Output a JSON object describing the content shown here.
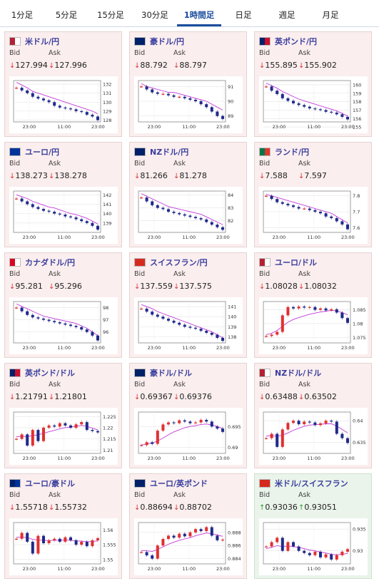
{
  "tabs": [
    "1分足",
    "5分足",
    "15分足",
    "30分足",
    "1時間足",
    "日足",
    "週足",
    "月足"
  ],
  "active_tab": 4,
  "labels": {
    "bid": "Bid",
    "ask": "Ask"
  },
  "cards": [
    {
      "pair": "米ドル/円",
      "bid": "127.994",
      "ask": "127.996",
      "dir": "down",
      "flag": [
        "#b22234",
        "#ffffff"
      ],
      "yticks": [
        "132",
        "131",
        "130",
        "129",
        "128"
      ],
      "xticks": [
        "23:00",
        "11:00",
        "23:00"
      ],
      "chart_data": {
        "type": "line",
        "y_range": [
          127.8,
          132.4
        ],
        "close": [
          131.6,
          131.3,
          131.0,
          130.6,
          130.4,
          130.2,
          130.0,
          129.6,
          129.4,
          129.3,
          129.2,
          129.0,
          128.9,
          128.6,
          128.4,
          128.0
        ],
        "ma": [
          132.2,
          131.9,
          131.6,
          131.2,
          131.0,
          130.8,
          130.6,
          130.4,
          130.2,
          130.0,
          129.8,
          129.6,
          129.4,
          129.2,
          129.0,
          128.7
        ]
      }
    },
    {
      "pair": "豪ドル/円",
      "bid": "88.792",
      "ask": "88.797",
      "dir": "down",
      "flag": [
        "#012169",
        "#012169"
      ],
      "yticks": [
        "91",
        "90",
        "89"
      ],
      "xticks": [
        "23:00",
        "11:00",
        "23:00"
      ],
      "chart_data": {
        "type": "line",
        "y_range": [
          88.6,
          91.4
        ],
        "close": [
          91.0,
          90.8,
          90.6,
          90.5,
          90.5,
          90.4,
          90.3,
          90.3,
          90.2,
          90.1,
          90.0,
          89.8,
          89.6,
          89.3,
          89.0,
          88.8
        ],
        "ma": [
          91.2,
          91.0,
          90.9,
          90.8,
          90.7,
          90.6,
          90.6,
          90.5,
          90.4,
          90.3,
          90.2,
          90.1,
          90.0,
          89.8,
          89.6,
          89.4
        ]
      }
    },
    {
      "pair": "英ポンド/円",
      "bid": "155.895",
      "ask": "155.902",
      "dir": "down",
      "flag": [
        "#012169",
        "#c8102e"
      ],
      "yticks": [
        "160",
        "159",
        "158",
        "157",
        "156",
        "155"
      ],
      "xticks": [
        "23:00",
        "11:00",
        "23:00"
      ],
      "chart_data": {
        "type": "line",
        "y_range": [
          155.6,
          160.5
        ],
        "close": [
          159.8,
          159.3,
          158.9,
          158.4,
          158.1,
          157.8,
          157.6,
          157.4,
          157.2,
          157.1,
          157.0,
          156.8,
          156.7,
          156.5,
          156.2,
          155.9
        ],
        "ma": [
          160.2,
          159.9,
          159.6,
          159.2,
          158.9,
          158.6,
          158.3,
          158.1,
          157.9,
          157.7,
          157.5,
          157.3,
          157.1,
          156.9,
          156.6,
          156.3
        ]
      }
    },
    {
      "pair": "ユーロ/円",
      "bid": "138.273",
      "ask": "138.278",
      "dir": "down",
      "flag": [
        "#003399",
        "#003399"
      ],
      "yticks": [
        "142",
        "141",
        "140",
        "139"
      ],
      "xticks": [
        "23:00",
        "11:00",
        "23:00"
      ],
      "chart_data": {
        "type": "line",
        "y_range": [
          138.0,
          142.4
        ],
        "close": [
          141.6,
          141.3,
          141.0,
          140.7,
          140.5,
          140.3,
          140.2,
          140.0,
          139.9,
          139.7,
          139.6,
          139.4,
          139.2,
          139.0,
          138.7,
          138.3
        ],
        "ma": [
          142.0,
          141.8,
          141.6,
          141.3,
          141.1,
          140.9,
          140.7,
          140.6,
          140.4,
          140.2,
          140.0,
          139.9,
          139.7,
          139.5,
          139.2,
          138.9
        ]
      }
    },
    {
      "pair": "NZドル/円",
      "bid": "81.266",
      "ask": "81.278",
      "dir": "down",
      "flag": [
        "#012169",
        "#012169"
      ],
      "yticks": [
        "84",
        "83",
        "82"
      ],
      "xticks": [
        "23:00",
        "11:00",
        "23:00"
      ],
      "chart_data": {
        "type": "line",
        "y_range": [
          81.1,
          84.3
        ],
        "close": [
          83.8,
          83.5,
          83.2,
          83.0,
          82.9,
          82.7,
          82.6,
          82.5,
          82.4,
          82.3,
          82.2,
          82.1,
          81.9,
          81.7,
          81.5,
          81.3
        ],
        "ma": [
          84.1,
          83.9,
          83.7,
          83.5,
          83.3,
          83.1,
          83.0,
          82.9,
          82.8,
          82.7,
          82.6,
          82.5,
          82.3,
          82.1,
          81.9,
          81.7
        ]
      }
    },
    {
      "pair": "ランド/円",
      "bid": "7.588",
      "ask": "7.597",
      "dir": "down",
      "flag": [
        "#007749",
        "#de3831"
      ],
      "yticks": [
        "7.8",
        "7.7",
        "7.6"
      ],
      "xticks": [
        "23:00",
        "11:00",
        "23:00"
      ],
      "chart_data": {
        "type": "line",
        "y_range": [
          7.57,
          7.83
        ],
        "close": [
          7.8,
          7.78,
          7.76,
          7.75,
          7.74,
          7.73,
          7.72,
          7.72,
          7.71,
          7.7,
          7.69,
          7.67,
          7.66,
          7.64,
          7.62,
          7.59
        ],
        "ma": [
          7.81,
          7.8,
          7.79,
          7.78,
          7.77,
          7.76,
          7.75,
          7.74,
          7.73,
          7.72,
          7.71,
          7.7,
          7.69,
          7.67,
          7.65,
          7.63
        ]
      }
    },
    {
      "pair": "カナダドル/円",
      "bid": "95.281",
      "ask": "95.296",
      "dir": "down",
      "flag": [
        "#d80621",
        "#ffffff"
      ],
      "yticks": [
        "98",
        "97",
        "96"
      ],
      "xticks": [
        "23:00",
        "11:00",
        "23:00"
      ],
      "chart_data": {
        "type": "line",
        "y_range": [
          95.1,
          98.5
        ],
        "close": [
          98.0,
          97.7,
          97.4,
          97.2,
          97.1,
          97.0,
          96.9,
          96.8,
          96.7,
          96.6,
          96.5,
          96.4,
          96.2,
          96.0,
          95.7,
          95.3
        ],
        "ma": [
          98.3,
          98.1,
          97.9,
          97.7,
          97.5,
          97.3,
          97.2,
          97.1,
          97.0,
          96.9,
          96.8,
          96.7,
          96.5,
          96.3,
          96.0,
          95.7
        ]
      }
    },
    {
      "pair": "スイスフラン/円",
      "bid": "137.559",
      "ask": "137.575",
      "dir": "down",
      "flag": [
        "#d52b1e",
        "#d52b1e"
      ],
      "yticks": [
        "141",
        "140",
        "139",
        "138"
      ],
      "xticks": [
        "23:00",
        "11:00",
        "23:00"
      ],
      "chart_data": {
        "type": "line",
        "y_range": [
          137.4,
          141.5
        ],
        "close": [
          140.8,
          140.5,
          140.2,
          140.0,
          139.8,
          139.6,
          139.4,
          139.2,
          139.0,
          138.9,
          138.8,
          138.6,
          138.4,
          138.2,
          137.9,
          137.6
        ],
        "ma": [
          141.2,
          141.0,
          140.8,
          140.5,
          140.3,
          140.1,
          139.9,
          139.7,
          139.5,
          139.3,
          139.1,
          138.9,
          138.7,
          138.5,
          138.2,
          137.9
        ]
      }
    },
    {
      "pair": "ユーロ/ドル",
      "bid": "1.08028",
      "ask": "1.08032",
      "dir": "down",
      "flag": [
        "#b22234",
        "#ffffff"
      ],
      "yticks": [
        "1.085",
        "1.08",
        "1.075"
      ],
      "xticks": [
        "23:00",
        "11:00",
        "23:00"
      ],
      "chart_data": {
        "type": "line",
        "y_range": [
          1.073,
          1.088
        ],
        "close": [
          1.0755,
          1.076,
          1.077,
          1.083,
          1.086,
          1.0855,
          1.0862,
          1.0858,
          1.086,
          1.085,
          1.0855,
          1.0848,
          1.0852,
          1.084,
          1.082,
          1.0803
        ],
        "ma": [
          1.076,
          1.0765,
          1.0775,
          1.079,
          1.0805,
          1.0815,
          1.0822,
          1.0828,
          1.0834,
          1.0838,
          1.0842,
          1.0845,
          1.0848,
          1.0846,
          1.084,
          1.0832
        ]
      }
    },
    {
      "pair": "英ポンド/ドル",
      "bid": "1.21791",
      "ask": "1.21801",
      "dir": "down",
      "flag": [
        "#012169",
        "#c8102e"
      ],
      "yticks": [
        "1.225",
        "1.22",
        "1.215",
        "1.21"
      ],
      "xticks": [
        "23:00",
        "11:00",
        "23:00"
      ],
      "chart_data": {
        "type": "line",
        "y_range": [
          1.2085,
          1.227
        ],
        "close": [
          1.215,
          1.217,
          1.212,
          1.219,
          1.214,
          1.22,
          1.221,
          1.2205,
          1.222,
          1.221,
          1.22,
          1.2215,
          1.2225,
          1.219,
          1.2185,
          1.2179
        ],
        "ma": [
          1.216,
          1.2162,
          1.216,
          1.2165,
          1.2168,
          1.2175,
          1.2182,
          1.2188,
          1.2195,
          1.22,
          1.2203,
          1.2206,
          1.221,
          1.2206,
          1.2198,
          1.219
        ]
      }
    },
    {
      "pair": "豪ドル/ドル",
      "bid": "0.69367",
      "ask": "0.69376",
      "dir": "down",
      "flag": [
        "#012169",
        "#012169"
      ],
      "yticks": [
        "0.695",
        "0.69"
      ],
      "xticks": [
        "23:00",
        "11:00",
        "23:00"
      ],
      "chart_data": {
        "type": "line",
        "y_range": [
          0.6885,
          0.6985
        ],
        "close": [
          0.6905,
          0.6912,
          0.6908,
          0.694,
          0.6955,
          0.696,
          0.6958,
          0.6965,
          0.6962,
          0.6958,
          0.696,
          0.6966,
          0.6962,
          0.695,
          0.6945,
          0.6937
        ],
        "ma": [
          0.6905,
          0.6908,
          0.691,
          0.6915,
          0.6922,
          0.693,
          0.6937,
          0.6942,
          0.6947,
          0.695,
          0.6952,
          0.6955,
          0.6956,
          0.6954,
          0.695,
          0.6945
        ]
      }
    },
    {
      "pair": "NZドル/ドル",
      "bid": "0.63488",
      "ask": "0.63502",
      "dir": "down",
      "flag": [
        "#b22234",
        "#ffffff"
      ],
      "yticks": [
        "0.64",
        "0.635"
      ],
      "xticks": [
        "23:00",
        "11:00",
        "23:00"
      ],
      "chart_data": {
        "type": "line",
        "y_range": [
          0.6325,
          0.642
        ],
        "close": [
          0.636,
          0.637,
          0.634,
          0.638,
          0.6395,
          0.64,
          0.6392,
          0.6398,
          0.6396,
          0.639,
          0.6394,
          0.64,
          0.6398,
          0.637,
          0.636,
          0.6349
        ],
        "ma": [
          0.6365,
          0.6366,
          0.6364,
          0.6367,
          0.6372,
          0.6378,
          0.6383,
          0.6387,
          0.639,
          0.6391,
          0.6392,
          0.6393,
          0.6393,
          0.6388,
          0.638,
          0.6372
        ]
      }
    },
    {
      "pair": "ユーロ/豪ドル",
      "bid": "1.55718",
      "ask": "1.55732",
      "dir": "down",
      "flag": [
        "#012169",
        "#003399"
      ],
      "yticks": [
        "1.56",
        "1.555",
        "1.55"
      ],
      "xticks": [
        "23:00",
        "11:00",
        "23:00"
      ],
      "chart_data": {
        "type": "line",
        "y_range": [
          1.5485,
          1.5625
        ],
        "close": [
          1.557,
          1.559,
          1.556,
          1.552,
          1.558,
          1.5555,
          1.5565,
          1.557,
          1.556,
          1.5575,
          1.5565,
          1.555,
          1.556,
          1.5545,
          1.5565,
          1.5572
        ],
        "ma": [
          1.5575,
          1.5576,
          1.5574,
          1.5568,
          1.5566,
          1.5565,
          1.5564,
          1.5565,
          1.5565,
          1.5566,
          1.5565,
          1.5563,
          1.5562,
          1.556,
          1.5561,
          1.5563
        ]
      }
    },
    {
      "pair": "ユーロ/英ポンド",
      "bid": "0.88694",
      "ask": "0.88702",
      "dir": "down",
      "flag": [
        "#012169",
        "#012169"
      ],
      "yticks": [
        "0.888",
        "0.886",
        "0.884"
      ],
      "xticks": [
        "23:00",
        "11:00",
        "23:00"
      ],
      "chart_data": {
        "type": "line",
        "y_range": [
          0.8832,
          0.8895
        ],
        "close": [
          0.885,
          0.8845,
          0.884,
          0.886,
          0.887,
          0.8875,
          0.8872,
          0.8878,
          0.8874,
          0.888,
          0.8885,
          0.8882,
          0.8888,
          0.8875,
          0.8868,
          0.8869
        ],
        "ma": [
          0.8852,
          0.8852,
          0.8851,
          0.8854,
          0.8858,
          0.8862,
          0.8865,
          0.8868,
          0.887,
          0.8872,
          0.8875,
          0.8877,
          0.8879,
          0.8878,
          0.8876,
          0.8874
        ]
      }
    },
    {
      "pair": "米ドル/スイスフラン",
      "bid": "0.93036",
      "ask": "0.93051",
      "dir": "up",
      "flag": [
        "#d52b1e",
        "#d52b1e"
      ],
      "yticks": [
        "0.935",
        "0.93"
      ],
      "xticks": [
        "23:00",
        "11:00",
        "23:00"
      ],
      "chart_data": {
        "type": "line",
        "y_range": [
          0.927,
          0.9365
        ],
        "close": [
          0.931,
          0.932,
          0.933,
          0.93,
          0.932,
          0.931,
          0.93,
          0.9295,
          0.929,
          0.9298,
          0.9285,
          0.9292,
          0.928,
          0.929,
          0.9298,
          0.9304
        ],
        "ma": [
          0.9305,
          0.9308,
          0.9312,
          0.931,
          0.9311,
          0.931,
          0.9308,
          0.9305,
          0.9302,
          0.93,
          0.9297,
          0.9295,
          0.9292,
          0.9291,
          0.9292,
          0.9294
        ]
      }
    }
  ]
}
